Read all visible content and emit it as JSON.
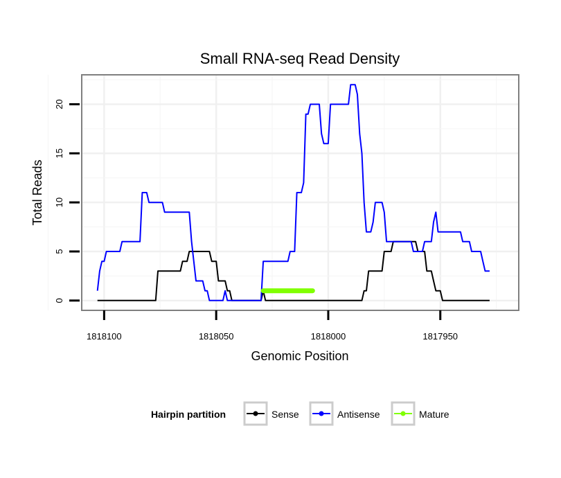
{
  "chart_data": {
    "type": "line",
    "title": "Small RNA-seq Read Density",
    "xlabel": "Genomic Position",
    "ylabel": "Total Reads",
    "x_reversed": true,
    "xlim": [
      1818110,
      1817915
    ],
    "ylim": [
      -1,
      23
    ],
    "x_ticks": [
      1818100,
      1818050,
      1818000,
      1817950
    ],
    "x_tick_labels": [
      "1818100",
      "1818050",
      "1818000",
      "1817950"
    ],
    "y_ticks": [
      0,
      5,
      10,
      15,
      20
    ],
    "y_tick_labels": [
      "0",
      "5",
      "10",
      "15",
      "20"
    ],
    "grid": true,
    "legend": {
      "title": "Hairpin partition",
      "position": "bottom",
      "entries": [
        {
          "label": "Sense",
          "color": "#000000"
        },
        {
          "label": "Antisense",
          "color": "#0000ff"
        },
        {
          "label": "Mature",
          "color": "#80ff00"
        }
      ]
    },
    "series": [
      {
        "name": "Sense",
        "color": "#000000",
        "points": [
          [
            1818103,
            0
          ],
          [
            1818077,
            0
          ],
          [
            1818076,
            3
          ],
          [
            1818066,
            3
          ],
          [
            1818065,
            4
          ],
          [
            1818063,
            4
          ],
          [
            1818062,
            5
          ],
          [
            1818053,
            5
          ],
          [
            1818052,
            4
          ],
          [
            1818050,
            4
          ],
          [
            1818049,
            2
          ],
          [
            1818046,
            2
          ],
          [
            1818045,
            1
          ],
          [
            1818044,
            1
          ],
          [
            1818043,
            0
          ],
          [
            1818030,
            0
          ],
          [
            1818029,
            1
          ],
          [
            1818028,
            0
          ],
          [
            1818006,
            0
          ],
          [
            1817985,
            0
          ],
          [
            1817984,
            1
          ],
          [
            1817983,
            1
          ],
          [
            1817982,
            3
          ],
          [
            1817976,
            3
          ],
          [
            1817975,
            5
          ],
          [
            1817972,
            5
          ],
          [
            1817971,
            6
          ],
          [
            1817961,
            6
          ],
          [
            1817960,
            5
          ],
          [
            1817957,
            5
          ],
          [
            1817956,
            3
          ],
          [
            1817954,
            3
          ],
          [
            1817953,
            2
          ],
          [
            1817952,
            1
          ],
          [
            1817950,
            1
          ],
          [
            1817949,
            0
          ],
          [
            1817928,
            0
          ]
        ]
      },
      {
        "name": "Antisense",
        "color": "#0000ff",
        "points": [
          [
            1818103,
            1
          ],
          [
            1818102,
            3
          ],
          [
            1818101,
            4
          ],
          [
            1818100,
            4
          ],
          [
            1818099,
            5
          ],
          [
            1818093,
            5
          ],
          [
            1818092,
            6
          ],
          [
            1818084,
            6
          ],
          [
            1818083,
            11
          ],
          [
            1818081,
            11
          ],
          [
            1818080,
            10
          ],
          [
            1818074,
            10
          ],
          [
            1818073,
            9
          ],
          [
            1818062,
            9
          ],
          [
            1818061,
            6
          ],
          [
            1818060,
            4
          ],
          [
            1818059,
            2
          ],
          [
            1818056,
            2
          ],
          [
            1818055,
            1
          ],
          [
            1818054,
            1
          ],
          [
            1818053,
            0
          ],
          [
            1818047,
            0
          ],
          [
            1818046,
            1
          ],
          [
            1818045,
            0
          ],
          [
            1818030,
            0
          ],
          [
            1818029,
            4
          ],
          [
            1818018,
            4
          ],
          [
            1818017,
            5
          ],
          [
            1818015,
            5
          ],
          [
            1818014,
            11
          ],
          [
            1818012,
            11
          ],
          [
            1818011,
            12
          ],
          [
            1818010,
            19
          ],
          [
            1818009,
            19
          ],
          [
            1818008,
            20
          ],
          [
            1818004,
            20
          ],
          [
            1818003,
            17
          ],
          [
            1818002,
            16
          ],
          [
            1818000,
            16
          ],
          [
            1817999,
            20
          ],
          [
            1817991,
            20
          ],
          [
            1817990,
            22
          ],
          [
            1817988,
            22
          ],
          [
            1817987,
            21
          ],
          [
            1817986,
            17
          ],
          [
            1817985,
            15
          ],
          [
            1817984,
            10
          ],
          [
            1817983,
            7
          ],
          [
            1817981,
            7
          ],
          [
            1817980,
            8
          ],
          [
            1817979,
            10
          ],
          [
            1817976,
            10
          ],
          [
            1817975,
            9
          ],
          [
            1817974,
            6
          ],
          [
            1817963,
            6
          ],
          [
            1817962,
            5
          ],
          [
            1817958,
            5
          ],
          [
            1817957,
            6
          ],
          [
            1817954,
            6
          ],
          [
            1817953,
            8
          ],
          [
            1817952,
            9
          ],
          [
            1817951,
            7
          ],
          [
            1817941,
            7
          ],
          [
            1817940,
            6
          ],
          [
            1817937,
            6
          ],
          [
            1817936,
            5
          ],
          [
            1817932,
            5
          ],
          [
            1817931,
            4
          ],
          [
            1817930,
            3
          ],
          [
            1817928,
            3
          ]
        ]
      },
      {
        "name": "Mature",
        "color": "#80ff00",
        "points": [
          [
            1818029,
            1
          ],
          [
            1818007,
            1
          ]
        ]
      }
    ]
  }
}
